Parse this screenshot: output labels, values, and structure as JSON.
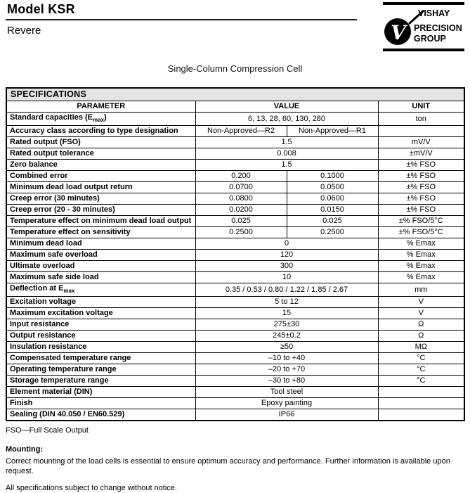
{
  "header": {
    "model": "Model KSR",
    "brand": "Revere",
    "logo": {
      "v": "V",
      "line1": "VISHAY",
      "line2": "PRECISION",
      "line3": "GROUP"
    }
  },
  "subtitle": "Single-Column Compression Cell",
  "spec_table": {
    "section_title": "SPECIFICATIONS",
    "columns": {
      "parameter": "PARAMETER",
      "value": "VALUE",
      "unit": "UNIT"
    },
    "rows": [
      {
        "param": "Standard capacities (E",
        "param_sub": "max",
        "param_end": ")",
        "value": "6, 13, 28, 60, 130, 280",
        "unit": "ton"
      },
      {
        "param": "Accuracy class according to type designation",
        "values": [
          "Non-Approved—R2",
          "Non-Approved—R1"
        ],
        "unit": ""
      },
      {
        "param": "Rated output (FSO)",
        "value": "1.5",
        "unit": "mV/V"
      },
      {
        "param": "Rated output tolerance",
        "value": "0.008",
        "unit": "±mV/V"
      },
      {
        "param": "Zero balance",
        "value": "1.5",
        "unit": "±% FSO"
      },
      {
        "param": "Combined error",
        "values": [
          "0.200",
          "0.1000"
        ],
        "unit": "±% FSO"
      },
      {
        "param": "Minimum dead load output return",
        "values": [
          "0.0700",
          "0.0500"
        ],
        "unit": "±% FSO"
      },
      {
        "param": "Creep error (30 minutes)",
        "values": [
          "0.0800",
          "0.0600"
        ],
        "unit": "±% FSO"
      },
      {
        "param": "Creep error (20 - 30 minutes)",
        "values": [
          "0.0200",
          "0.0150"
        ],
        "unit": "±% FSO"
      },
      {
        "param": "Temperature effect on minimum dead load output",
        "values": [
          "0.025",
          "0.025"
        ],
        "unit": "±% FSO/5°C"
      },
      {
        "param": "Temperature effect on sensitivity",
        "values": [
          "0.2500",
          "0.2500"
        ],
        "unit": "±% FSO/5°C"
      },
      {
        "param": "Minimum dead load",
        "value": "0",
        "unit": "% Emax"
      },
      {
        "param": "Maximum safe overload",
        "value": "120",
        "unit": "% Emax"
      },
      {
        "param": "Ultimate overload",
        "value": "300",
        "unit": "% Emax"
      },
      {
        "param": "Maximum safe side load",
        "value": "10",
        "unit": "% Emax"
      },
      {
        "param": "Deflection at E",
        "param_sub": "max",
        "param_end": "",
        "value": "0.35 / 0.53 / 0.80 / 1.22 / 1.85 / 2.67",
        "unit": "mm"
      },
      {
        "param": "Excitation voltage",
        "value": "5 to 12",
        "unit": "V"
      },
      {
        "param": "Maximum excitation voltage",
        "value": "15",
        "unit": "V"
      },
      {
        "param": "Input resistance",
        "value": "275±30",
        "unit": "Ω"
      },
      {
        "param": "Output resistance",
        "value": "245±0.2",
        "unit": "Ω"
      },
      {
        "param": "Insulation resistance",
        "value": "≥50",
        "unit": "MΩ"
      },
      {
        "param": "Compensated temperature range",
        "value": "–10 to +40",
        "unit": "°C"
      },
      {
        "param": "Operating temperature range",
        "value": "–20 to +70",
        "unit": "°C"
      },
      {
        "param": "Storage temperature range",
        "value": "–30 to +80",
        "unit": "°C"
      },
      {
        "param": "Element material (DIN)",
        "value": "Tool steel",
        "unit": ""
      },
      {
        "param": "Finish",
        "value": "Epoxy painting",
        "unit": ""
      },
      {
        "param": "Sealing (DIN 40.050 / EN60.529)",
        "value": "IP66",
        "unit": ""
      }
    ]
  },
  "notes": {
    "fso": "FSO—Full Scale Output",
    "mounting_label": "Mounting:",
    "mounting_text": "Correct mounting of the load cells is essential to ensure optimum accuracy and performance. Further information is available upon request.",
    "disclaimer": "All specifications subject to change without notice."
  }
}
